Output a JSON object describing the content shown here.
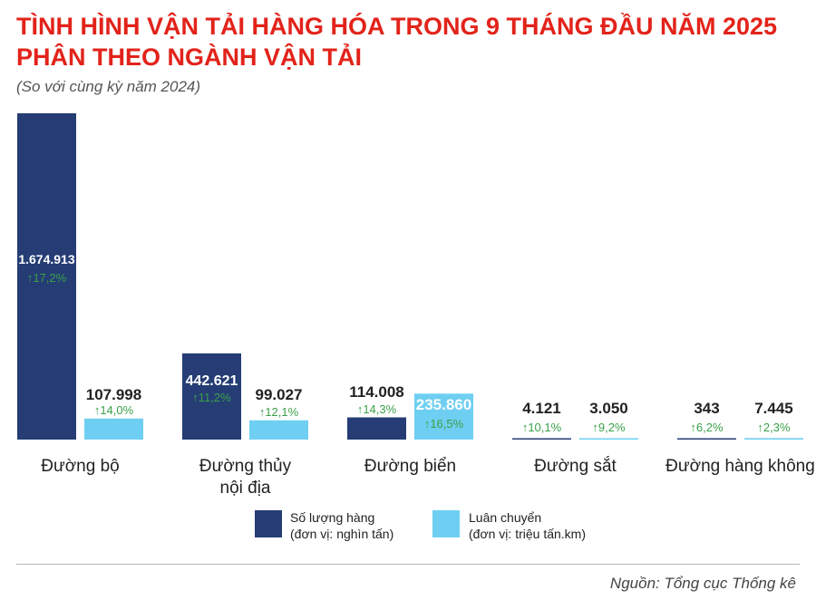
{
  "header": {
    "title_line1": "TÌNH HÌNH VẬN TẢI HÀNG HÓA TRONG 9 THÁNG ĐẦU NĂM 2025",
    "title_line2": "PHÂN THEO NGÀNH VẬN TẢI",
    "subtitle": "(So với cùng kỳ năm 2024)"
  },
  "legend": {
    "volume_line1": "Số lượng hàng",
    "volume_line2": "(đơn vị: nghìn tấn)",
    "turnover_line1": "Luân chuyển",
    "turnover_line2": "(đơn vị: triệu tấn.km)"
  },
  "source": "Nguồn: Tổng cục Thống kê",
  "colors": {
    "volume": "#253d74",
    "turnover": "#6fcff2",
    "growth": "#3aa04a",
    "title": "#e2231a"
  },
  "chart_data": {
    "type": "bar",
    "categories": [
      [
        "Đường bộ"
      ],
      [
        "Đường thủy",
        "nội địa"
      ],
      [
        "Đường biển"
      ],
      [
        "Đường sắt"
      ],
      [
        "Đường hàng không"
      ]
    ],
    "series": [
      {
        "name": "Số lượng hàng (đơn vị: nghìn tấn)",
        "values": [
          1674913,
          442621,
          114008,
          4121,
          343
        ],
        "labels": [
          "1.674.913",
          "442.621",
          "114.008",
          "4.121",
          "343"
        ],
        "growth": [
          "17,2%",
          "11,2%",
          "14,3%",
          "10,1%",
          "6,2%"
        ]
      },
      {
        "name": "Luân chuyển (đơn vị: triệu tấn.km)",
        "values": [
          107998,
          99027,
          235860,
          3050,
          7445
        ],
        "labels": [
          "107.998",
          "99.027",
          "235.860",
          "3.050",
          "7.445"
        ],
        "growth": [
          "14,0%",
          "12,1%",
          "16,5%",
          "9,2%",
          "2,3%"
        ]
      }
    ],
    "ylim": [
      0,
      1674913
    ],
    "grid": false,
    "legend_position": "bottom-center"
  }
}
